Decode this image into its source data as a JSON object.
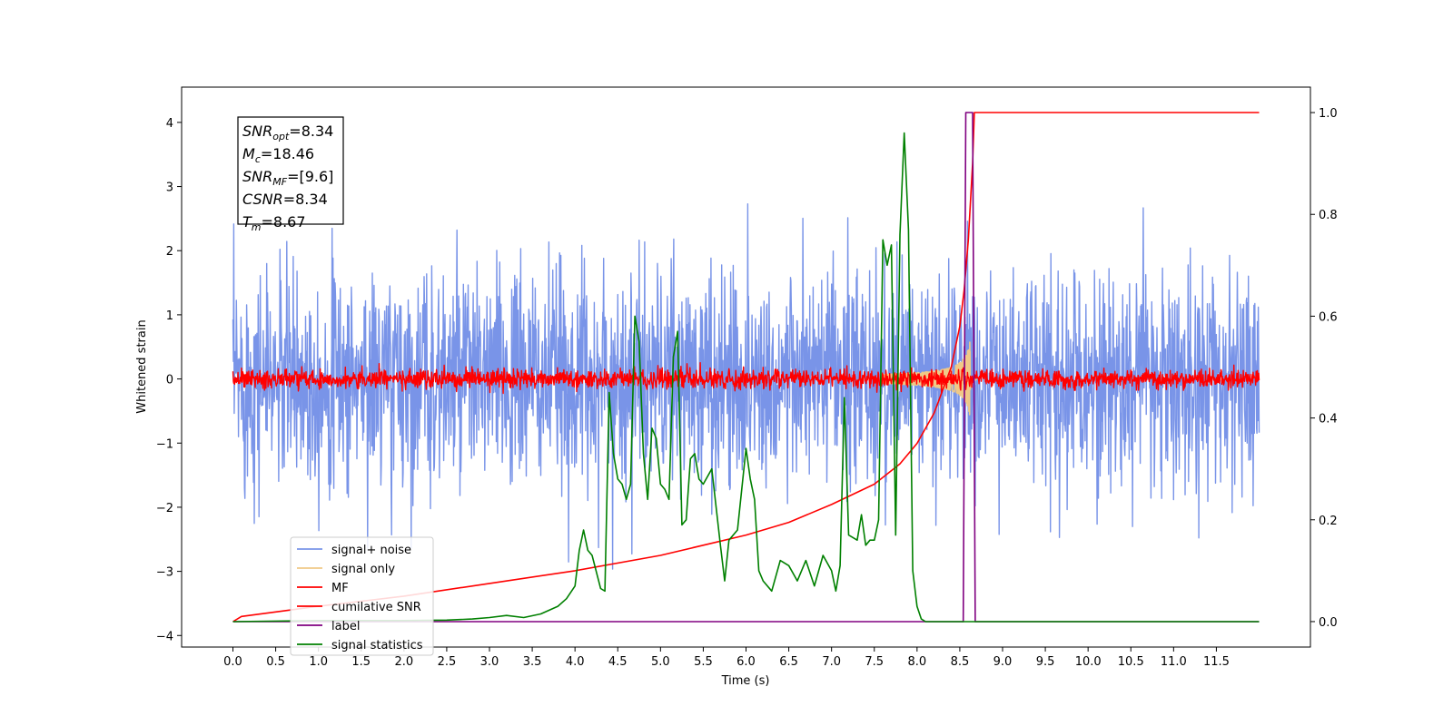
{
  "chart_data": {
    "type": "line",
    "xlabel": "Time (s)",
    "ylabel": "Whitened strain",
    "xlim": [
      -0.6,
      12.6
    ],
    "ylim": [
      -4.18,
      4.55
    ],
    "y2lim": [
      -0.05,
      1.05
    ],
    "x_ticks": [
      "0.0",
      "0.5",
      "1.0",
      "1.5",
      "2.0",
      "2.5",
      "3.0",
      "3.5",
      "4.0",
      "4.5",
      "5.0",
      "5.5",
      "6.0",
      "6.5",
      "7.0",
      "7.5",
      "8.0",
      "8.5",
      "9.0",
      "9.5",
      "10.0",
      "10.5",
      "11.0",
      "11.5"
    ],
    "y_ticks": [
      "4",
      "3",
      "2",
      "1",
      "0",
      "−1",
      "−2",
      "−3",
      "−4"
    ],
    "y2_ticks": [
      "1.0",
      "0.8",
      "0.6",
      "0.4",
      "0.2",
      "0.0"
    ],
    "grid": false,
    "legend_position": "lower-left",
    "annotation": [
      {
        "base": "SNR",
        "sub": "opt",
        "value": "=8.34"
      },
      {
        "base": "M",
        "sub": "c",
        "value": "=18.46"
      },
      {
        "base": "SNR",
        "sub": "MF",
        "value": "=[9.6]"
      },
      {
        "base": "CSNR",
        "sub": "",
        "value": "=8.34"
      },
      {
        "base": "T",
        "sub": "m",
        "value": "=8.67"
      }
    ],
    "series": [
      {
        "name": "signal+ noise",
        "color": "#7994e8",
        "kind": "noise",
        "axis": "left",
        "amplitude": 1.55,
        "x_range": [
          0,
          12
        ]
      },
      {
        "name": "signal only",
        "color": "#f0c987",
        "kind": "chirp",
        "axis": "left",
        "peak_time": 8.62,
        "peak_amplitude": 0.6
      },
      {
        "name": "MF",
        "color": "#ff0000",
        "kind": "noise",
        "axis": "left",
        "amplitude": 0.13,
        "x_range": [
          0,
          12
        ]
      },
      {
        "name": "cumilative SNR",
        "color": "#ff0000",
        "kind": "line",
        "axis": "right",
        "x": [
          0,
          0.1,
          1,
          2,
          3,
          4,
          5,
          6,
          6.5,
          7,
          7.5,
          7.8,
          8.0,
          8.2,
          8.4,
          8.5,
          8.55,
          8.6,
          8.65,
          8.67,
          12
        ],
        "y": [
          0.0,
          0.01,
          0.03,
          0.05,
          0.075,
          0.1,
          0.13,
          0.17,
          0.195,
          0.23,
          0.27,
          0.31,
          0.35,
          0.41,
          0.5,
          0.58,
          0.65,
          0.75,
          0.9,
          1.0,
          1.0
        ]
      },
      {
        "name": "label",
        "color": "#800080",
        "kind": "line",
        "axis": "right",
        "x": [
          0,
          8.54,
          8.57,
          8.65,
          8.68,
          12
        ],
        "y": [
          0,
          0,
          1,
          1,
          0,
          0
        ]
      },
      {
        "name": "signal statistics",
        "color": "#008000",
        "kind": "line",
        "axis": "right",
        "x": [
          0,
          1,
          2,
          2.5,
          2.8,
          3.0,
          3.2,
          3.4,
          3.6,
          3.8,
          3.9,
          4.0,
          4.05,
          4.1,
          4.15,
          4.2,
          4.3,
          4.35,
          4.4,
          4.45,
          4.5,
          4.55,
          4.6,
          4.65,
          4.7,
          4.75,
          4.8,
          4.85,
          4.9,
          4.95,
          5.0,
          5.05,
          5.1,
          5.15,
          5.2,
          5.25,
          5.3,
          5.35,
          5.4,
          5.45,
          5.5,
          5.6,
          5.7,
          5.75,
          5.8,
          5.9,
          6.0,
          6.05,
          6.1,
          6.15,
          6.2,
          6.3,
          6.4,
          6.5,
          6.6,
          6.7,
          6.8,
          6.9,
          7.0,
          7.05,
          7.1,
          7.15,
          7.2,
          7.3,
          7.35,
          7.4,
          7.45,
          7.5,
          7.55,
          7.6,
          7.65,
          7.7,
          7.75,
          7.8,
          7.85,
          7.9,
          7.95,
          8.0,
          8.05,
          8.1,
          8.15,
          8.2,
          8.25,
          8.3,
          8.35,
          8.4,
          8.45,
          8.5,
          8.55,
          8.6,
          8.65,
          8.7,
          8.75,
          8.8,
          8.9,
          12
        ],
        "y": [
          0.0,
          0.002,
          0.002,
          0.003,
          0.005,
          0.008,
          0.012,
          0.008,
          0.015,
          0.03,
          0.045,
          0.07,
          0.14,
          0.18,
          0.14,
          0.13,
          0.065,
          0.06,
          0.45,
          0.33,
          0.28,
          0.27,
          0.24,
          0.27,
          0.6,
          0.55,
          0.33,
          0.24,
          0.38,
          0.36,
          0.27,
          0.26,
          0.24,
          0.52,
          0.57,
          0.19,
          0.2,
          0.32,
          0.33,
          0.28,
          0.27,
          0.3,
          0.15,
          0.08,
          0.16,
          0.18,
          0.34,
          0.28,
          0.24,
          0.1,
          0.08,
          0.06,
          0.12,
          0.11,
          0.08,
          0.12,
          0.07,
          0.13,
          0.1,
          0.06,
          0.11,
          0.44,
          0.17,
          0.16,
          0.21,
          0.15,
          0.16,
          0.16,
          0.2,
          0.75,
          0.7,
          0.74,
          0.17,
          0.76,
          0.96,
          0.77,
          0.1,
          0.03,
          0.005,
          0.0,
          0.0,
          0.0,
          0.0,
          0.0,
          0.0,
          0.0,
          0.0,
          0.0,
          0.0,
          0.0,
          0.0,
          0.0,
          0.0,
          0.0,
          0.0,
          0.0
        ]
      }
    ]
  }
}
